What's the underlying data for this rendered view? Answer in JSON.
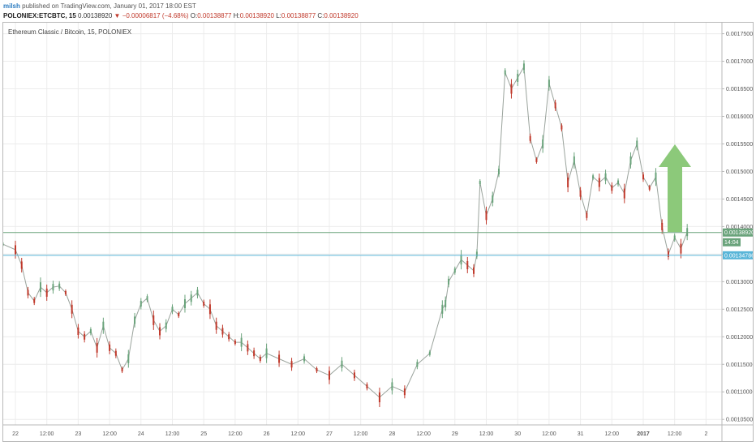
{
  "header": {
    "user": "milsh",
    "published": "published on TradingView.com, January 01, 2017 18:00 EST",
    "symbol": "POLONIEX:ETCBTC, 15",
    "price": "0.00138920",
    "change_arrow": "▼",
    "change": "−0.00006817 (−4.68%)",
    "o_label": "O:",
    "o_value": "0.00138877",
    "h_label": "H:",
    "h_value": "0.00138920",
    "l_label": "L:",
    "l_value": "0.00138877",
    "c_label": "C:",
    "c_value": "0.00138920"
  },
  "chart_data": {
    "type": "line",
    "title": "Ethereum Classic / Bitcoin, 15, POLONIEX",
    "ylim": [
      0.00104,
      0.00177
    ],
    "y_ticks": [
      "0.00175000",
      "0.00170000",
      "0.00165000",
      "0.00160000",
      "0.00155000",
      "0.00150000",
      "0.00145000",
      "0.00140000",
      "0.00135000",
      "0.00130000",
      "0.00125000",
      "0.00120000",
      "0.00115000",
      "0.00110000",
      "0.00105000"
    ],
    "y_tick_values": [
      0.00175,
      0.0017,
      0.00165,
      0.0016,
      0.00155,
      0.0015,
      0.00145,
      0.0014,
      0.00135,
      0.0013,
      0.00125,
      0.0012,
      0.00115,
      0.0011,
      0.00105
    ],
    "x_ticks": [
      "22",
      "12:00",
      "23",
      "12:00",
      "24",
      "12:00",
      "25",
      "12:00",
      "26",
      "12:00",
      "27",
      "12:00",
      "28",
      "12:00",
      "29",
      "12:00",
      "30",
      "12:00",
      "31",
      "12:00",
      "2017",
      "12:00",
      "2"
    ],
    "x_tick_values": [
      0,
      0.5,
      1,
      1.5,
      2,
      2.5,
      3,
      3.5,
      4,
      4.5,
      5,
      5.5,
      6,
      6.5,
      7,
      7.5,
      8,
      8.5,
      9,
      9.5,
      10,
      10.5,
      11
    ],
    "series": [
      {
        "x": [
          -0.2,
          0,
          0.1,
          0.2,
          0.3,
          0.4,
          0.5,
          0.6,
          0.7,
          0.8,
          0.9,
          1.0,
          1.1,
          1.2,
          1.3,
          1.4,
          1.5,
          1.6,
          1.7,
          1.8,
          1.9,
          2.0,
          2.1,
          2.2,
          2.3,
          2.4,
          2.5,
          2.6,
          2.7,
          2.8,
          2.9,
          3.0,
          3.1,
          3.2,
          3.3,
          3.4,
          3.5,
          3.6,
          3.7,
          3.8,
          3.9,
          4.0,
          4.2,
          4.4,
          4.6,
          4.8,
          5.0,
          5.2,
          5.4,
          5.6,
          5.8,
          6.0,
          6.2,
          6.4,
          6.6,
          6.8,
          6.85,
          6.9,
          7.0,
          7.1,
          7.2,
          7.3,
          7.35,
          7.4,
          7.5,
          7.6,
          7.7,
          7.8,
          7.9,
          8.0,
          8.1,
          8.2,
          8.3,
          8.4,
          8.5,
          8.6,
          8.7,
          8.8,
          8.9,
          9.0,
          9.1,
          9.2,
          9.3,
          9.4,
          9.5,
          9.6,
          9.7,
          9.8,
          9.9,
          10.0,
          10.1,
          10.2,
          10.3,
          10.4,
          10.5,
          10.6,
          10.7
        ],
        "y": [
          0.001368,
          0.001358,
          0.00133,
          0.00128,
          0.001265,
          0.00129,
          0.00128,
          0.00129,
          0.001292,
          0.00128,
          0.00125,
          0.00121,
          0.0012,
          0.00121,
          0.00118,
          0.00122,
          0.00118,
          0.00117,
          0.00114,
          0.00116,
          0.00123,
          0.00126,
          0.00127,
          0.00123,
          0.00121,
          0.00122,
          0.00125,
          0.00124,
          0.00126,
          0.00127,
          0.00128,
          0.00126,
          0.00125,
          0.00122,
          0.00121,
          0.0012,
          0.00119,
          0.00119,
          0.00118,
          0.00117,
          0.00116,
          0.00117,
          0.00116,
          0.00115,
          0.00116,
          0.00114,
          0.00113,
          0.00115,
          0.00113,
          0.00111,
          0.00109,
          0.00111,
          0.0011,
          0.00115,
          0.00117,
          0.00125,
          0.00126,
          0.0013,
          0.00132,
          0.00134,
          0.00133,
          0.00132,
          0.00135,
          0.00148,
          0.00142,
          0.00145,
          0.0015,
          0.00168,
          0.00165,
          0.00167,
          0.00169,
          0.00156,
          0.00152,
          0.00155,
          0.00166,
          0.00162,
          0.00158,
          0.00148,
          0.00152,
          0.00146,
          0.00142,
          0.00149,
          0.00148,
          0.00149,
          0.00147,
          0.00148,
          0.00146,
          0.00152,
          0.00155,
          0.00149,
          0.00147,
          0.00149,
          0.0014,
          0.00135,
          0.00138,
          0.00136,
          0.00139
        ]
      }
    ],
    "horizontal_lines": [
      {
        "value": 0.0013892,
        "label": "0.00138920",
        "color": "#6aa37b"
      },
      {
        "value": 0.00134786,
        "label": "0.00134786",
        "color": "#58b5d8"
      }
    ],
    "countdown_label": "14:04",
    "arrow": {
      "direction": "up",
      "color": "#8cc97a"
    },
    "grid": true,
    "colors": {
      "up": "#6aa37b",
      "down": "#c0392b",
      "line": "#9aa39c"
    }
  }
}
